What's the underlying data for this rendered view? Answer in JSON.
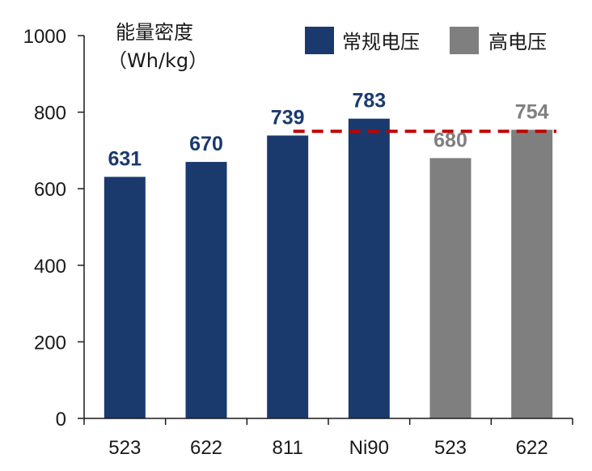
{
  "chart_data": {
    "type": "bar",
    "ylabel_line1": "能量密度",
    "ylabel_line2": "（Wh/kg）",
    "ylim": [
      0,
      1000
    ],
    "yticks": [
      0,
      200,
      400,
      600,
      800,
      1000
    ],
    "categories": [
      "523",
      "622",
      "811",
      "Ni90",
      "523",
      "622"
    ],
    "values": [
      631,
      670,
      739,
      783,
      680,
      754
    ],
    "bar_groups": [
      "常规电压",
      "常规电压",
      "常规电压",
      "常规电压",
      "高电压",
      "高电压"
    ],
    "series": [
      {
        "name": "常规电压",
        "color": "#1a3a6e"
      },
      {
        "name": "高电压",
        "color": "#7f7f7f"
      }
    ],
    "reference_line": {
      "value": 750,
      "color": "#c00000",
      "style": "dashed"
    },
    "grid": false,
    "legend_position": "top-right"
  }
}
